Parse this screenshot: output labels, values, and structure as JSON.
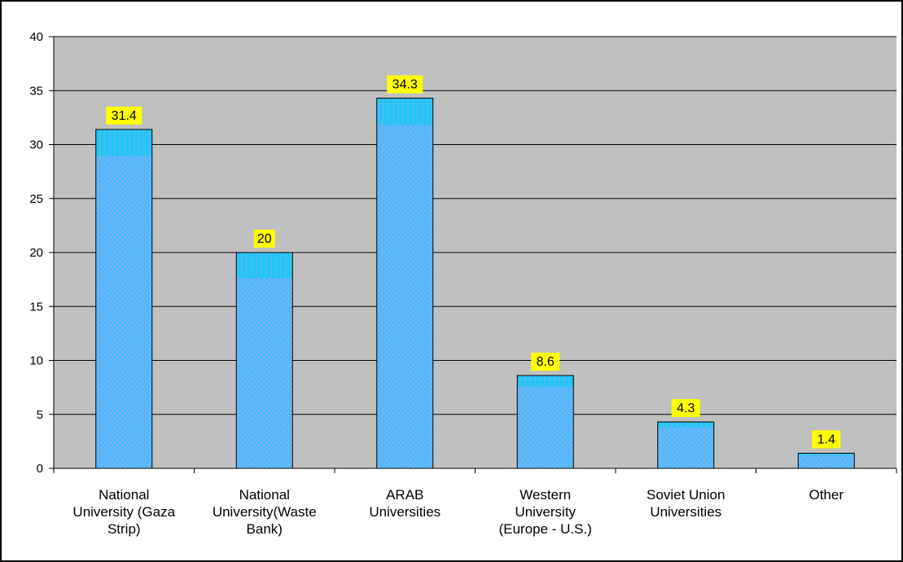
{
  "colors": {
    "plot_background": "#c0c0c0",
    "bar_fill": "#4db8ff",
    "bar_pattern_dots": "#8ab4e6",
    "bar_stripe": "#1fc8f0",
    "bar_stroke": "#000000",
    "label_background": "#ffff00",
    "gridline": "#000000"
  },
  "chart_data": {
    "type": "bar",
    "title": "",
    "xlabel": "",
    "ylabel": "",
    "categories": [
      [
        "National",
        "University (Gaza",
        "Strip)"
      ],
      [
        "National",
        "University(Waste",
        "Bank)"
      ],
      [
        "ARAB",
        "Universities"
      ],
      [
        "Western",
        "University",
        "(Europe - U.S.)"
      ],
      [
        "Soviet Union",
        "Universities"
      ],
      [
        "Other"
      ]
    ],
    "values": [
      31.4,
      20,
      34.3,
      8.6,
      4.3,
      1.4
    ],
    "data_labels": [
      "31.4",
      "20",
      "34.3",
      "8.6",
      "4.3",
      "1.4"
    ],
    "ylim": [
      0,
      40
    ],
    "yticks": [
      0,
      5,
      10,
      15,
      20,
      25,
      30,
      35,
      40
    ],
    "grid": true,
    "legend": "none"
  }
}
